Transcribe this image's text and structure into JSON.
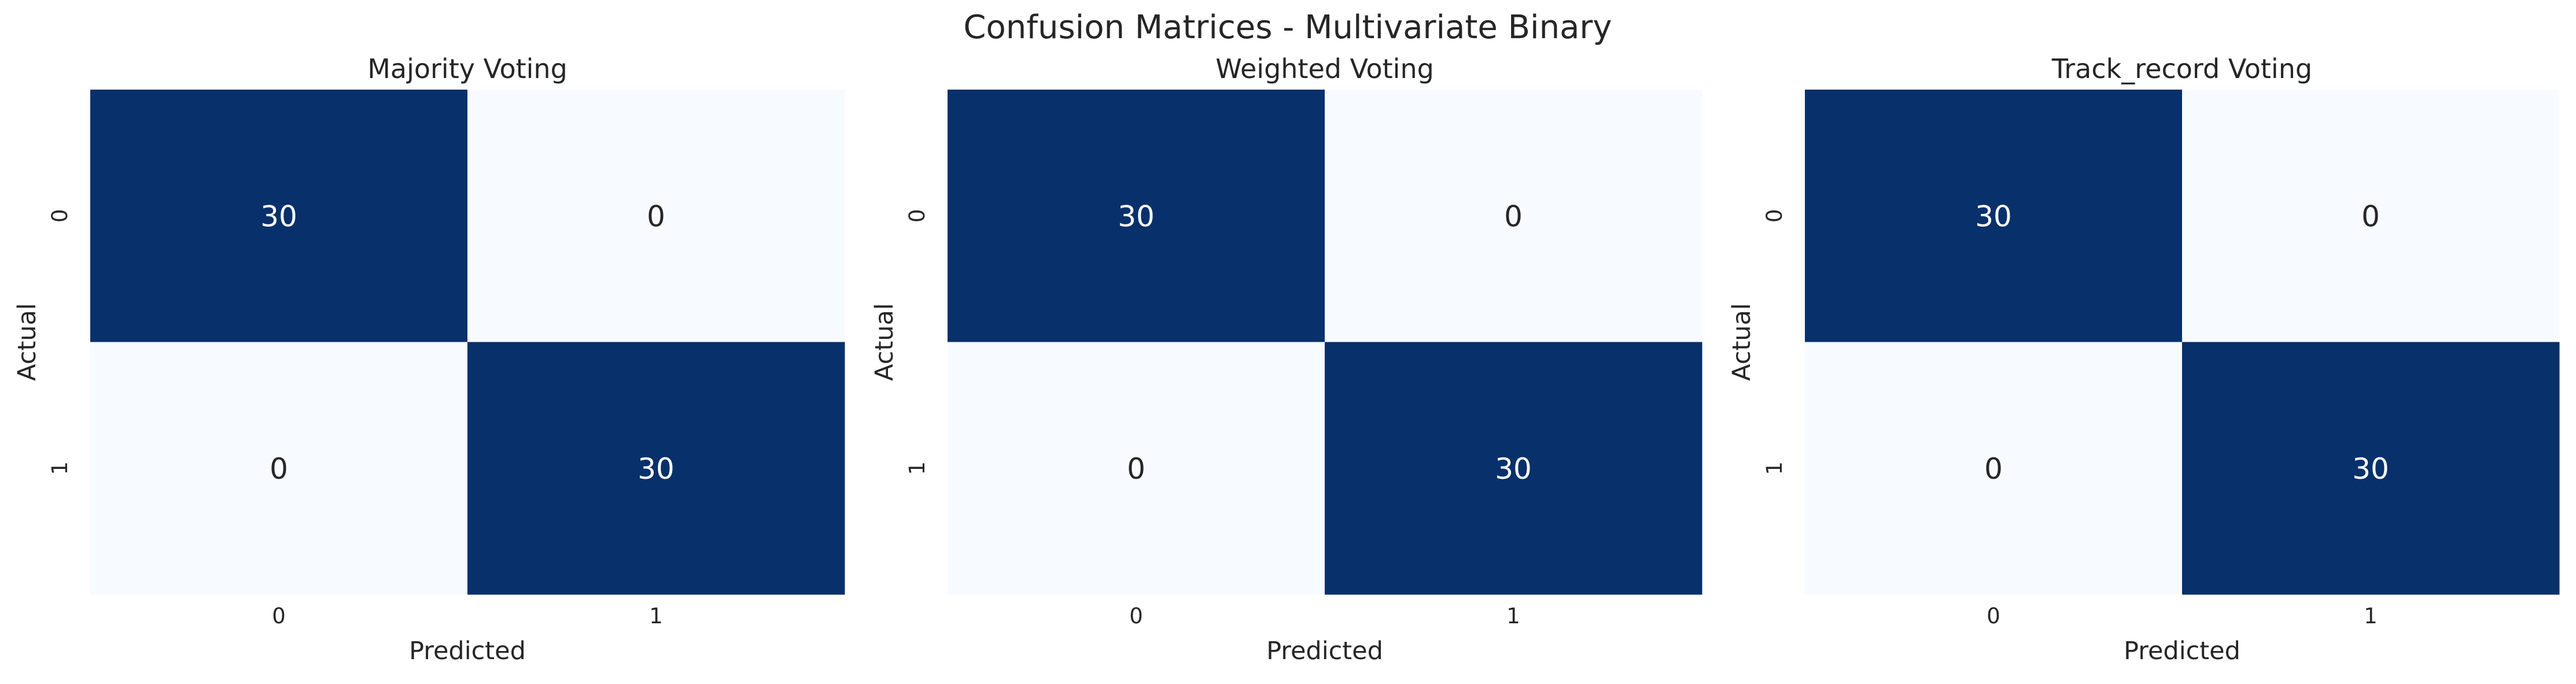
{
  "figure": {
    "suptitle": "Confusion Matrices - Multivariate Binary",
    "colors": {
      "high": "#08306b",
      "low": "#f7fbff",
      "text_on_high": "#ffffff",
      "text_on_low": "#262626",
      "axis_text": "#262626"
    },
    "colormap": "Blues"
  },
  "chart_data": [
    {
      "type": "heatmap",
      "title": "Majority Voting",
      "xlabel": "Predicted",
      "ylabel": "Actual",
      "x_categories": [
        "0",
        "1"
      ],
      "y_categories": [
        "0",
        "1"
      ],
      "values": [
        [
          30,
          0
        ],
        [
          0,
          30
        ]
      ],
      "value_range": [
        0,
        30
      ],
      "grid": false,
      "colorbar": false
    },
    {
      "type": "heatmap",
      "title": "Weighted Voting",
      "xlabel": "Predicted",
      "ylabel": "Actual",
      "x_categories": [
        "0",
        "1"
      ],
      "y_categories": [
        "0",
        "1"
      ],
      "values": [
        [
          30,
          0
        ],
        [
          0,
          30
        ]
      ],
      "value_range": [
        0,
        30
      ],
      "grid": false,
      "colorbar": false
    },
    {
      "type": "heatmap",
      "title": "Track_record Voting",
      "xlabel": "Predicted",
      "ylabel": "Actual",
      "x_categories": [
        "0",
        "1"
      ],
      "y_categories": [
        "0",
        "1"
      ],
      "values": [
        [
          30,
          0
        ],
        [
          0,
          30
        ]
      ],
      "value_range": [
        0,
        30
      ],
      "grid": false,
      "colorbar": false
    }
  ]
}
